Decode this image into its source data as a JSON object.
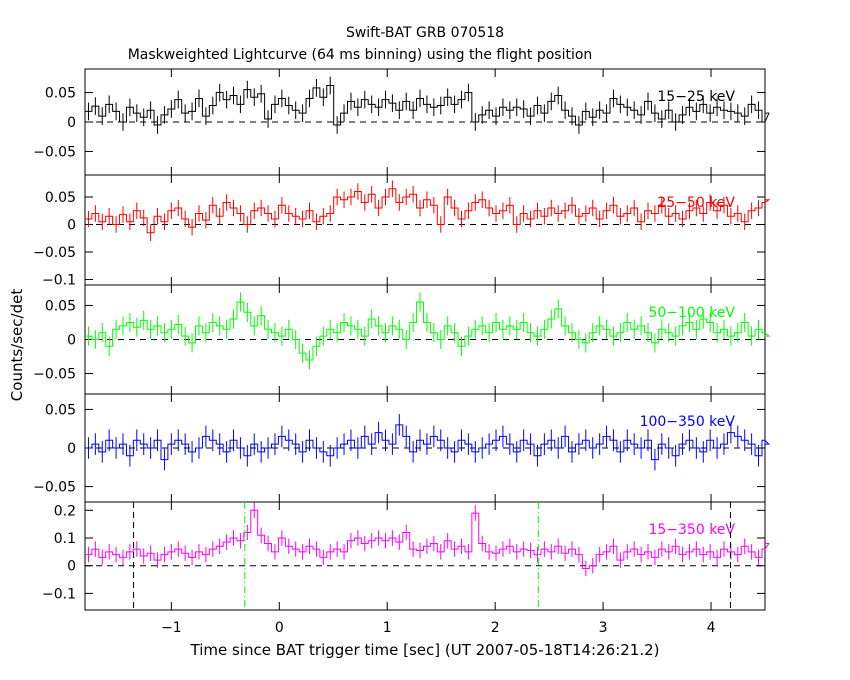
{
  "chart_data": {
    "type": "line",
    "title": "Swift-BAT GRB 070518",
    "subtitle": "Maskweighted Lightcurve (64 ms binning) using the flight position",
    "xlabel": "Time since BAT trigger time [sec] (UT 2007-05-18T14:26:21.2)",
    "ylabel": "Counts/sec/det",
    "xlim": [
      -1.8,
      4.5
    ],
    "xticks": [
      -1,
      0,
      1,
      2,
      3,
      4
    ],
    "xtick_labels": [
      "−1",
      "0",
      "1",
      "2",
      "3",
      "4"
    ],
    "bin_width": 0.064,
    "panels": [
      {
        "band": "15−25 keV",
        "color": "#000000",
        "ylim": [
          -0.09,
          0.09
        ],
        "yticks": [
          -0.05,
          0,
          0.05
        ],
        "ytick_labels": [
          "−0.05",
          "0",
          "0.05"
        ],
        "err": 0.015,
        "values": [
          0.018,
          0.027,
          0.01,
          0.03,
          0.018,
          0.0,
          0.025,
          0.015,
          0.008,
          0.02,
          -0.005,
          0.012,
          0.022,
          0.038,
          0.015,
          0.018,
          0.04,
          0.01,
          0.028,
          0.05,
          0.038,
          0.045,
          0.03,
          0.055,
          0.042,
          0.048,
          0.005,
          0.03,
          0.04,
          0.028,
          0.02,
          0.015,
          0.04,
          0.058,
          0.042,
          0.062,
          -0.005,
          0.015,
          0.035,
          0.025,
          0.038,
          0.03,
          0.025,
          0.038,
          0.032,
          0.02,
          0.035,
          0.02,
          0.04,
          0.03,
          0.025,
          0.028,
          0.042,
          0.03,
          0.038,
          0.05,
          0.0,
          0.012,
          0.02,
          0.01,
          0.025,
          0.02,
          0.025,
          0.022,
          0.01,
          0.028,
          0.015,
          0.035,
          0.045,
          0.02,
          0.01,
          -0.005,
          0.018,
          0.008,
          0.02,
          0.015,
          0.04,
          0.03,
          0.025,
          0.02,
          0.012,
          0.035,
          0.015,
          0.005,
          0.02,
          0.0,
          0.012,
          0.025,
          0.018,
          0.03,
          0.015,
          0.025,
          0.02,
          0.018,
          0.015,
          0.01,
          0.03,
          0.02,
          0.0,
          0.015
        ]
      },
      {
        "band": "25−50 keV",
        "color": "#ff0000",
        "ylim": [
          -0.11,
          0.09
        ],
        "yticks": [
          -0.1,
          -0.05,
          0,
          0.05
        ],
        "ytick_labels": [
          "−0.1",
          "−0.05",
          "0",
          "0.05"
        ],
        "err": 0.015,
        "values": [
          0.01,
          0.02,
          0.005,
          0.015,
          0.0,
          0.018,
          0.005,
          0.025,
          0.012,
          -0.015,
          0.015,
          0.005,
          0.025,
          0.03,
          0.01,
          -0.005,
          0.02,
          0.008,
          0.035,
          0.015,
          0.04,
          0.03,
          0.02,
          0.0,
          0.025,
          0.03,
          0.02,
          0.01,
          0.035,
          0.02,
          0.015,
          0.01,
          0.025,
          0.005,
          0.015,
          0.02,
          0.05,
          0.045,
          0.05,
          0.06,
          0.04,
          0.055,
          0.03,
          0.05,
          0.065,
          0.04,
          0.05,
          0.055,
          0.03,
          0.045,
          0.035,
          0.0,
          0.05,
          0.03,
          0.01,
          0.025,
          0.04,
          0.045,
          0.03,
          0.02,
          0.025,
          0.035,
          0.0,
          0.02,
          0.01,
          0.025,
          0.015,
          0.03,
          0.02,
          0.025,
          0.035,
          0.015,
          0.02,
          0.03,
          0.01,
          0.025,
          0.035,
          0.015,
          0.02,
          0.03,
          0.005,
          0.025,
          0.02,
          0.035,
          0.015,
          0.02,
          0.01,
          0.025,
          0.03,
          0.02,
          0.04,
          0.025,
          0.035,
          0.015,
          0.02,
          0.005,
          0.025,
          0.03,
          0.04,
          0.045
        ]
      },
      {
        "band": "50−100 keV",
        "color": "#00ff00",
        "ylim": [
          -0.08,
          0.08
        ],
        "yticks": [
          -0.05,
          0,
          0.05
        ],
        "ytick_labels": [
          "−0.05",
          "0",
          "0.05"
        ],
        "err": 0.014,
        "values": [
          0.005,
          0.0,
          0.01,
          -0.01,
          0.015,
          0.02,
          0.025,
          0.018,
          0.028,
          0.015,
          0.02,
          0.01,
          0.015,
          0.022,
          0.005,
          -0.005,
          0.02,
          0.01,
          0.025,
          0.02,
          0.015,
          0.03,
          0.055,
          0.04,
          0.02,
          0.035,
          0.015,
          0.01,
          0.005,
          0.015,
          0.0,
          -0.02,
          -0.03,
          -0.01,
          0.005,
          0.015,
          0.01,
          0.025,
          0.02,
          0.015,
          0.005,
          0.03,
          0.02,
          0.01,
          0.02,
          0.015,
          0.0,
          0.025,
          0.055,
          0.025,
          0.01,
          0.0,
          0.02,
          0.01,
          -0.01,
          0.005,
          0.015,
          0.02,
          0.01,
          0.025,
          0.015,
          0.02,
          0.015,
          0.025,
          0.01,
          0.005,
          0.015,
          0.03,
          0.045,
          0.02,
          0.01,
          0.0,
          -0.005,
          0.01,
          0.02,
          0.015,
          0.005,
          0.01,
          0.025,
          0.015,
          0.02,
          0.01,
          -0.005,
          0.015,
          0.01,
          0.005,
          0.02,
          0.025,
          0.015,
          0.03,
          0.025,
          0.01,
          0.015,
          0.005,
          0.01,
          0.025,
          0.005,
          0.015,
          0.01,
          0.005
        ]
      },
      {
        "band": "100−350 keV",
        "color": "#0000ff",
        "ylim": [
          -0.07,
          0.07
        ],
        "yticks": [
          -0.05,
          0,
          0.05
        ],
        "ytick_labels": [
          "−0.05",
          "0",
          "0.05"
        ],
        "err": 0.014,
        "values": [
          0.0,
          0.005,
          -0.005,
          0.01,
          0.0,
          0.005,
          -0.01,
          0.01,
          0.005,
          0.0,
          0.01,
          -0.015,
          0.005,
          0.01,
          0.005,
          -0.005,
          0.0,
          0.015,
          0.01,
          0.005,
          -0.005,
          0.01,
          0.0,
          -0.01,
          0.005,
          -0.005,
          0.0,
          0.005,
          0.015,
          0.01,
          0.005,
          -0.005,
          0.01,
          0.0,
          -0.005,
          -0.01,
          0.0,
          0.005,
          0.01,
          0.0,
          0.015,
          0.005,
          0.02,
          0.01,
          0.005,
          0.03,
          0.015,
          -0.005,
          0.01,
          0.005,
          0.015,
          0.01,
          0.0,
          -0.005,
          0.01,
          0.005,
          -0.005,
          0.0,
          0.005,
          0.01,
          0.015,
          0.005,
          -0.005,
          0.01,
          0.005,
          -0.01,
          0.005,
          0.01,
          0.0,
          0.015,
          -0.005,
          0.005,
          0.01,
          0.0,
          0.005,
          0.015,
          0.01,
          -0.005,
          0.01,
          0.005,
          0.0,
          0.01,
          -0.015,
          0.005,
          0.0,
          -0.01,
          0.005,
          0.01,
          0.0,
          -0.005,
          0.01,
          0.0,
          0.005,
          0.02,
          0.015,
          0.01,
          0.005,
          -0.01,
          0.01,
          0.005
        ]
      },
      {
        "band": "15−350 keV",
        "color": "#ff00ff",
        "ylim": [
          -0.16,
          0.23
        ],
        "yticks": [
          -0.1,
          0,
          0.1,
          0.2
        ],
        "ytick_labels": [
          "−0.1",
          "0",
          "0.1",
          "0.2"
        ],
        "err": 0.028,
        "values": [
          0.04,
          0.06,
          0.03,
          0.05,
          0.04,
          0.03,
          0.05,
          0.06,
          0.035,
          0.045,
          0.02,
          0.04,
          0.05,
          0.06,
          0.045,
          0.03,
          0.05,
          0.04,
          0.06,
          0.07,
          0.085,
          0.1,
          0.09,
          0.12,
          0.2,
          0.11,
          0.08,
          0.05,
          0.1,
          0.07,
          0.06,
          0.05,
          0.07,
          0.06,
          0.03,
          0.05,
          0.06,
          0.05,
          0.09,
          0.1,
          0.08,
          0.09,
          0.1,
          0.09,
          0.1,
          0.085,
          0.12,
          0.06,
          0.055,
          0.07,
          0.08,
          0.05,
          0.09,
          0.06,
          0.07,
          0.05,
          0.19,
          0.08,
          0.05,
          0.045,
          0.06,
          0.07,
          0.05,
          0.06,
          0.055,
          0.04,
          0.06,
          0.05,
          0.07,
          0.045,
          0.06,
          0.04,
          -0.01,
          0.0,
          0.04,
          0.05,
          0.07,
          0.02,
          0.05,
          0.06,
          0.04,
          0.05,
          0.03,
          0.06,
          0.05,
          0.07,
          0.04,
          0.05,
          0.06,
          0.04,
          0.05,
          0.03,
          0.06,
          0.05,
          0.04,
          0.07,
          0.05,
          0.03,
          0.06,
          0.08
        ]
      }
    ],
    "markers": [
      {
        "x": -1.35,
        "style": "dashed",
        "color": "#000000"
      },
      {
        "x": -0.32,
        "style": "dash-dot",
        "color": "#00ff00"
      },
      {
        "x": 2.4,
        "style": "dash-dot",
        "color": "#00ff00"
      },
      {
        "x": 4.18,
        "style": "dashed",
        "color": "#000000"
      }
    ],
    "zero_line": "dashed",
    "grid": false,
    "legend": "none"
  }
}
